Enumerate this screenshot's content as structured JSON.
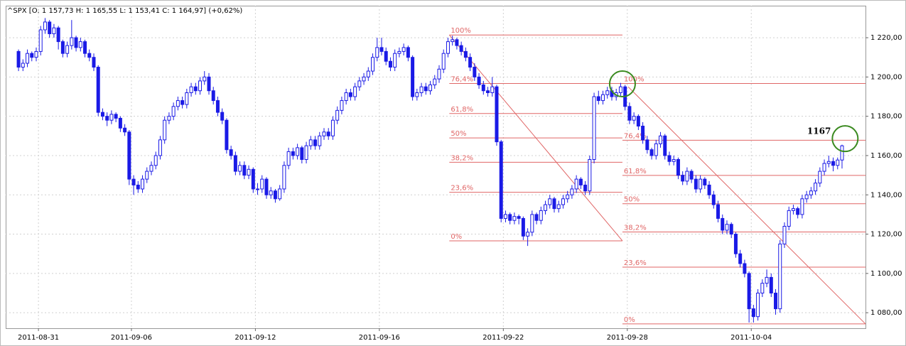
{
  "chart_data": {
    "type": "candlestick",
    "title": "^SPX [O: 1 157,73  H: 1 165,55  L: 1 153,41  C: 1 164,97] (+0,62%)",
    "up_color": "#ffffff",
    "down_color": "#1a1ae6",
    "wick_color": "#1a1ae6",
    "grid": true,
    "xlim": [
      -2.9,
      191.3
    ],
    "ylim": [
      1072.1,
      1236.3
    ],
    "xticks": [
      {
        "value": 4.5,
        "label": "2011-08-31"
      },
      {
        "value": 25.5,
        "label": "2011-09-06"
      },
      {
        "value": 53.5,
        "label": "2011-09-12"
      },
      {
        "value": 81.5,
        "label": "2011-09-16"
      },
      {
        "value": 109.5,
        "label": "2011-09-22"
      },
      {
        "value": 137.5,
        "label": "2011-09-28"
      },
      {
        "value": 165.5,
        "label": "2011-10-04"
      }
    ],
    "yticks": [
      {
        "value": 1080,
        "label": "1 080,00"
      },
      {
        "value": 1100,
        "label": "1 100,00"
      },
      {
        "value": 1120,
        "label": "1 120,00"
      },
      {
        "value": 1140,
        "label": "1 140,00"
      },
      {
        "value": 1160,
        "label": "1 160,00"
      },
      {
        "value": 1180,
        "label": "1 180,00"
      },
      {
        "value": 1200,
        "label": "1 200,00"
      },
      {
        "value": 1220,
        "label": "1 220,00"
      }
    ],
    "candles": [
      [
        1213,
        1214,
        1203,
        1205
      ],
      [
        1205,
        1209,
        1203,
        1207
      ],
      [
        1207,
        1214,
        1205,
        1212
      ],
      [
        1212,
        1213,
        1208,
        1210
      ],
      [
        1210,
        1215,
        1208,
        1213
      ],
      [
        1213,
        1226,
        1211,
        1224
      ],
      [
        1224,
        1230,
        1222,
        1228
      ],
      [
        1228,
        1229,
        1220,
        1222
      ],
      [
        1222,
        1227,
        1220,
        1225
      ],
      [
        1225,
        1226,
        1214,
        1218
      ],
      [
        1218,
        1219,
        1210,
        1212
      ],
      [
        1212,
        1218,
        1210,
        1216
      ],
      [
        1216,
        1229,
        1214,
        1220
      ],
      [
        1220,
        1221,
        1213,
        1215
      ],
      [
        1215,
        1220,
        1213,
        1218
      ],
      [
        1218,
        1219,
        1210,
        1212
      ],
      [
        1212,
        1214,
        1208,
        1210
      ],
      [
        1210,
        1212,
        1203,
        1205
      ],
      [
        1205,
        1206,
        1180,
        1182
      ],
      [
        1182,
        1184,
        1178,
        1180
      ],
      [
        1180,
        1182,
        1175,
        1178
      ],
      [
        1178,
        1183,
        1176,
        1181
      ],
      [
        1181,
        1182,
        1177,
        1179
      ],
      [
        1179,
        1180,
        1172,
        1174
      ],
      [
        1174,
        1176,
        1170,
        1172
      ],
      [
        1172,
        1173,
        1145,
        1148
      ],
      [
        1148,
        1150,
        1140,
        1145
      ],
      [
        1145,
        1147,
        1141,
        1143
      ],
      [
        1143,
        1150,
        1141,
        1148
      ],
      [
        1148,
        1154,
        1146,
        1152
      ],
      [
        1152,
        1157,
        1150,
        1155
      ],
      [
        1155,
        1162,
        1153,
        1160
      ],
      [
        1160,
        1170,
        1158,
        1168
      ],
      [
        1168,
        1180,
        1166,
        1178
      ],
      [
        1178,
        1182,
        1176,
        1180
      ],
      [
        1180,
        1187,
        1178,
        1185
      ],
      [
        1185,
        1190,
        1183,
        1188
      ],
      [
        1188,
        1190,
        1184,
        1186
      ],
      [
        1186,
        1194,
        1184,
        1192
      ],
      [
        1192,
        1197,
        1190,
        1195
      ],
      [
        1195,
        1197,
        1191,
        1193
      ],
      [
        1193,
        1200,
        1191,
        1198
      ],
      [
        1198,
        1203,
        1196,
        1200
      ],
      [
        1200,
        1202,
        1191,
        1193
      ],
      [
        1193,
        1195,
        1186,
        1188
      ],
      [
        1188,
        1190,
        1180,
        1182
      ],
      [
        1182,
        1184,
        1176,
        1178
      ],
      [
        1178,
        1179,
        1161,
        1163
      ],
      [
        1163,
        1165,
        1158,
        1160
      ],
      [
        1160,
        1162,
        1150,
        1152
      ],
      [
        1152,
        1157,
        1150,
        1155
      ],
      [
        1155,
        1157,
        1148,
        1150
      ],
      [
        1150,
        1155,
        1148,
        1153
      ],
      [
        1153,
        1154,
        1141,
        1143
      ],
      [
        1143,
        1146,
        1140,
        1143
      ],
      [
        1143,
        1150,
        1141,
        1148
      ],
      [
        1148,
        1149,
        1138,
        1140
      ],
      [
        1140,
        1144,
        1138,
        1142
      ],
      [
        1142,
        1143,
        1136,
        1138
      ],
      [
        1138,
        1145,
        1137,
        1143
      ],
      [
        1143,
        1157,
        1141,
        1155
      ],
      [
        1155,
        1164,
        1153,
        1162
      ],
      [
        1162,
        1164,
        1158,
        1160
      ],
      [
        1160,
        1166,
        1158,
        1164
      ],
      [
        1164,
        1165,
        1156,
        1158
      ],
      [
        1158,
        1167,
        1156,
        1165
      ],
      [
        1165,
        1170,
        1163,
        1168
      ],
      [
        1168,
        1170,
        1163,
        1165
      ],
      [
        1165,
        1172,
        1163,
        1170
      ],
      [
        1170,
        1174,
        1168,
        1172
      ],
      [
        1172,
        1174,
        1168,
        1170
      ],
      [
        1170,
        1180,
        1168,
        1178
      ],
      [
        1178,
        1185,
        1176,
        1183
      ],
      [
        1183,
        1190,
        1181,
        1188
      ],
      [
        1188,
        1194,
        1186,
        1192
      ],
      [
        1192,
        1194,
        1188,
        1190
      ],
      [
        1190,
        1197,
        1188,
        1195
      ],
      [
        1195,
        1200,
        1193,
        1198
      ],
      [
        1198,
        1202,
        1196,
        1200
      ],
      [
        1200,
        1205,
        1198,
        1203
      ],
      [
        1203,
        1212,
        1201,
        1210
      ],
      [
        1210,
        1220,
        1208,
        1215
      ],
      [
        1215,
        1220,
        1211,
        1213
      ],
      [
        1213,
        1215,
        1206,
        1208
      ],
      [
        1208,
        1210,
        1203,
        1205
      ],
      [
        1205,
        1214,
        1203,
        1212
      ],
      [
        1212,
        1215,
        1210,
        1213
      ],
      [
        1213,
        1217,
        1211,
        1215
      ],
      [
        1215,
        1216,
        1208,
        1210
      ],
      [
        1210,
        1211,
        1188,
        1190
      ],
      [
        1190,
        1194,
        1188,
        1192
      ],
      [
        1192,
        1197,
        1190,
        1195
      ],
      [
        1195,
        1197,
        1191,
        1193
      ],
      [
        1193,
        1198,
        1191,
        1196
      ],
      [
        1196,
        1201,
        1194,
        1199
      ],
      [
        1199,
        1206,
        1197,
        1204
      ],
      [
        1204,
        1214,
        1202,
        1212
      ],
      [
        1212,
        1220,
        1210,
        1218
      ],
      [
        1218,
        1221,
        1216,
        1219
      ],
      [
        1219,
        1220,
        1214,
        1216
      ],
      [
        1216,
        1218,
        1211,
        1213
      ],
      [
        1213,
        1215,
        1208,
        1210
      ],
      [
        1210,
        1212,
        1203,
        1205
      ],
      [
        1205,
        1207,
        1198,
        1200
      ],
      [
        1200,
        1202,
        1194,
        1196
      ],
      [
        1196,
        1198,
        1191,
        1193
      ],
      [
        1193,
        1195,
        1190,
        1192
      ],
      [
        1192,
        1200,
        1190,
        1195
      ],
      [
        1195,
        1196,
        1165,
        1167
      ],
      [
        1167,
        1168,
        1126,
        1128
      ],
      [
        1128,
        1132,
        1126,
        1130
      ],
      [
        1130,
        1131,
        1125,
        1127
      ],
      [
        1127,
        1131,
        1125,
        1129
      ],
      [
        1129,
        1130,
        1125,
        1128
      ],
      [
        1128,
        1129,
        1117,
        1119
      ],
      [
        1119,
        1123,
        1114,
        1121
      ],
      [
        1121,
        1132,
        1119,
        1130
      ],
      [
        1130,
        1131,
        1125,
        1127
      ],
      [
        1127,
        1134,
        1125,
        1132
      ],
      [
        1132,
        1137,
        1130,
        1135
      ],
      [
        1135,
        1140,
        1133,
        1138
      ],
      [
        1138,
        1139,
        1131,
        1133
      ],
      [
        1133,
        1137,
        1131,
        1135
      ],
      [
        1135,
        1140,
        1133,
        1138
      ],
      [
        1138,
        1142,
        1136,
        1140
      ],
      [
        1140,
        1145,
        1138,
        1143
      ],
      [
        1143,
        1150,
        1141,
        1148
      ],
      [
        1148,
        1149,
        1143,
        1145
      ],
      [
        1145,
        1147,
        1140,
        1142
      ],
      [
        1142,
        1160,
        1140,
        1158
      ],
      [
        1158,
        1192,
        1156,
        1190
      ],
      [
        1190,
        1193,
        1186,
        1188
      ],
      [
        1188,
        1193,
        1186,
        1191
      ],
      [
        1191,
        1195,
        1189,
        1193
      ],
      [
        1193,
        1195,
        1188,
        1190
      ],
      [
        1190,
        1194,
        1188,
        1192
      ],
      [
        1192,
        1197,
        1190,
        1195
      ],
      [
        1195,
        1196,
        1183,
        1185
      ],
      [
        1185,
        1187,
        1176,
        1178
      ],
      [
        1178,
        1182,
        1176,
        1180
      ],
      [
        1180,
        1181,
        1173,
        1175
      ],
      [
        1175,
        1177,
        1166,
        1168
      ],
      [
        1168,
        1170,
        1161,
        1163
      ],
      [
        1163,
        1164,
        1158,
        1160
      ],
      [
        1160,
        1168,
        1158,
        1166
      ],
      [
        1166,
        1172,
        1164,
        1170
      ],
      [
        1170,
        1171,
        1158,
        1160
      ],
      [
        1160,
        1162,
        1155,
        1157
      ],
      [
        1157,
        1160,
        1155,
        1158
      ],
      [
        1158,
        1159,
        1148,
        1150
      ],
      [
        1150,
        1152,
        1145,
        1147
      ],
      [
        1147,
        1154,
        1145,
        1152
      ],
      [
        1152,
        1153,
        1146,
        1148
      ],
      [
        1148,
        1150,
        1141,
        1143
      ],
      [
        1143,
        1150,
        1141,
        1148
      ],
      [
        1148,
        1149,
        1143,
        1145
      ],
      [
        1145,
        1147,
        1138,
        1140
      ],
      [
        1140,
        1142,
        1133,
        1135
      ],
      [
        1135,
        1137,
        1126,
        1128
      ],
      [
        1128,
        1130,
        1120,
        1122
      ],
      [
        1122,
        1127,
        1120,
        1125
      ],
      [
        1125,
        1126,
        1118,
        1120
      ],
      [
        1120,
        1121,
        1108,
        1110
      ],
      [
        1110,
        1112,
        1103,
        1105
      ],
      [
        1105,
        1107,
        1098,
        1100
      ],
      [
        1100,
        1101,
        1075,
        1082
      ],
      [
        1082,
        1084,
        1075,
        1078
      ],
      [
        1078,
        1092,
        1076,
        1090
      ],
      [
        1090,
        1097,
        1088,
        1095
      ],
      [
        1095,
        1102,
        1093,
        1098
      ],
      [
        1098,
        1100,
        1088,
        1090
      ],
      [
        1090,
        1092,
        1079,
        1082
      ],
      [
        1082,
        1117,
        1080,
        1115
      ],
      [
        1115,
        1126,
        1113,
        1124
      ],
      [
        1124,
        1134,
        1122,
        1132
      ],
      [
        1132,
        1135,
        1130,
        1133
      ],
      [
        1133,
        1134,
        1128,
        1130
      ],
      [
        1130,
        1140,
        1128,
        1138
      ],
      [
        1138,
        1142,
        1136,
        1140
      ],
      [
        1140,
        1144,
        1138,
        1142
      ],
      [
        1142,
        1148,
        1140,
        1146
      ],
      [
        1146,
        1154,
        1144,
        1152
      ],
      [
        1152,
        1158,
        1150,
        1156
      ],
      [
        1156,
        1160,
        1154,
        1157
      ],
      [
        1157,
        1159,
        1152,
        1155
      ],
      [
        1155,
        1159,
        1153,
        1157.73
      ],
      [
        1157.73,
        1165.55,
        1153.41,
        1164.97
      ]
    ],
    "fibonacci": [
      {
        "color": "#e06666",
        "start": 97.3,
        "end": 136.4,
        "trend_from": [
          97.3,
          1221.4
        ],
        "trend_to": [
          136.4,
          1116.6
        ],
        "levels": [
          {
            "label": "100%",
            "price": 1221.4
          },
          {
            "label": "76,4%",
            "price": 1196.7
          },
          {
            "label": "61,8%",
            "price": 1181.4
          },
          {
            "label": "50%",
            "price": 1169
          },
          {
            "label": "38,2%",
            "price": 1156.6
          },
          {
            "label": "23,6%",
            "price": 1141.3
          },
          {
            "label": "0%",
            "price": 1116.6
          }
        ]
      },
      {
        "color": "#e06666",
        "start": 136.4,
        "end": 191.3,
        "trend_from": [
          137.7,
          1195
        ],
        "trend_to": [
          191.3,
          1074.3
        ],
        "levels": [
          {
            "label": "100%",
            "price": 1196.7
          },
          {
            "label": "76,4%",
            "price": 1167.8
          },
          {
            "label": "61,8%",
            "price": 1149.9
          },
          {
            "label": "50%",
            "price": 1135.5
          },
          {
            "label": "38,2%",
            "price": 1121.1
          },
          {
            "label": "23,6%",
            "price": 1103.2
          },
          {
            "label": "0%",
            "price": 1074.3
          }
        ]
      }
    ],
    "highlights": [
      {
        "color": "#3a8a1f",
        "x": 136.4,
        "y": 1196.5
      },
      {
        "color": "#3a8a1f",
        "x": 186.7,
        "y": 1168.6,
        "label": "1167"
      }
    ]
  }
}
